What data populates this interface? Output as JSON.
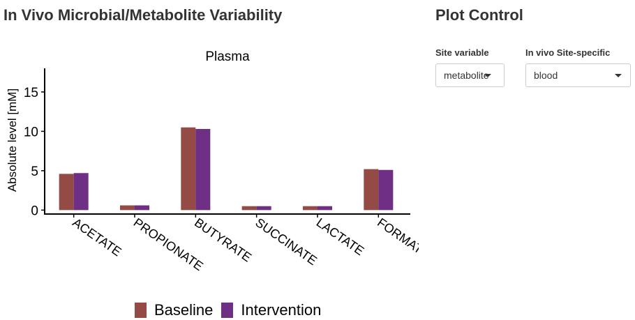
{
  "header": {
    "title": "In Vivo Microbial/Metabolite Variability"
  },
  "controls": {
    "title": "Plot Control",
    "site_variable": {
      "label": "Site variable",
      "value": "metabolite"
    },
    "site_specific": {
      "label": "In vivo Site-specific",
      "value": "blood"
    }
  },
  "chart_data": {
    "type": "bar",
    "title": "Plasma",
    "xlabel": "",
    "ylabel": "Absolute level [mM]",
    "ylim": [
      -0.5,
      18
    ],
    "yticks": [
      0,
      5,
      10,
      15
    ],
    "grid": false,
    "legend_position": "bottom",
    "categories": [
      "ACETATE",
      "PROPIONATE",
      "BUTYRATE",
      "SUCCINATE",
      "LACTATE",
      "FORMATE"
    ],
    "series": [
      {
        "name": "Baseline",
        "color": "#944a45",
        "values": [
          4.6,
          0.6,
          10.5,
          0.5,
          0.5,
          5.2
        ]
      },
      {
        "name": "Intervention",
        "color": "#6f2f85",
        "values": [
          4.7,
          0.6,
          10.3,
          0.5,
          0.5,
          5.1
        ]
      }
    ]
  }
}
